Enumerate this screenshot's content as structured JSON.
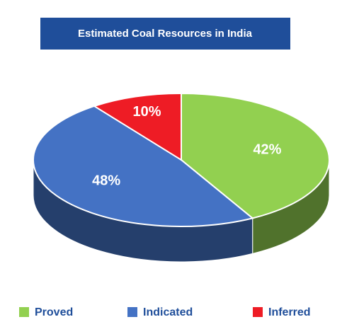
{
  "chart_data": {
    "type": "pie",
    "title": "Estimated Coal Resources in India",
    "categories": [
      "Proved",
      "Indicated",
      "Inferred"
    ],
    "values": [
      42,
      48,
      10
    ],
    "value_labels": [
      "42%",
      "48%",
      "10%"
    ],
    "colors": [
      "#92d050",
      "#4472c4",
      "#ee1c25"
    ]
  }
}
